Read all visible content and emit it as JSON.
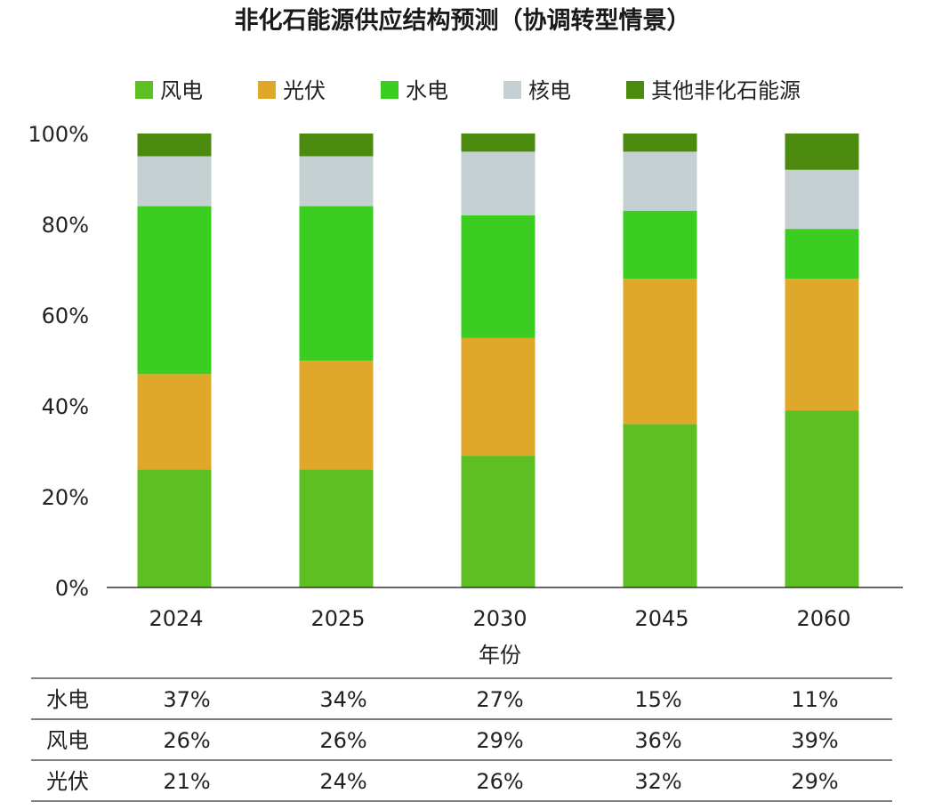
{
  "chart_data": {
    "type": "bar",
    "stacked": true,
    "title": "非化石能源供应结构预测（协调转型情景）",
    "xlabel": "年份",
    "ylabel": "",
    "ylim": [
      0,
      100
    ],
    "yticks": [
      "0%",
      "20%",
      "40%",
      "60%",
      "80%",
      "100%"
    ],
    "categories": [
      "2024",
      "2025",
      "2030",
      "2045",
      "2060"
    ],
    "legend_position": "top",
    "grid": false,
    "series": [
      {
        "name": "风电",
        "color": "#5dbf22",
        "values": [
          26,
          26,
          29,
          36,
          39
        ]
      },
      {
        "name": "光伏",
        "color": "#e0a82a",
        "values": [
          21,
          24,
          26,
          32,
          29
        ]
      },
      {
        "name": "水电",
        "color": "#3ccd22",
        "values": [
          37,
          34,
          27,
          15,
          11
        ]
      },
      {
        "name": "核电",
        "color": "#c4d0d2",
        "values": [
          11,
          11,
          14,
          13,
          13
        ]
      },
      {
        "name": "其他非化石能源",
        "color": "#4b8a0e",
        "values": [
          5,
          5,
          4,
          4,
          8
        ]
      }
    ],
    "table": {
      "rows": [
        {
          "label": "水电",
          "values": [
            "37%",
            "34%",
            "27%",
            "15%",
            "11%"
          ]
        },
        {
          "label": "风电",
          "values": [
            "26%",
            "26%",
            "29%",
            "36%",
            "39%"
          ]
        },
        {
          "label": "光伏",
          "values": [
            "21%",
            "24%",
            "26%",
            "32%",
            "29%"
          ]
        }
      ]
    }
  }
}
